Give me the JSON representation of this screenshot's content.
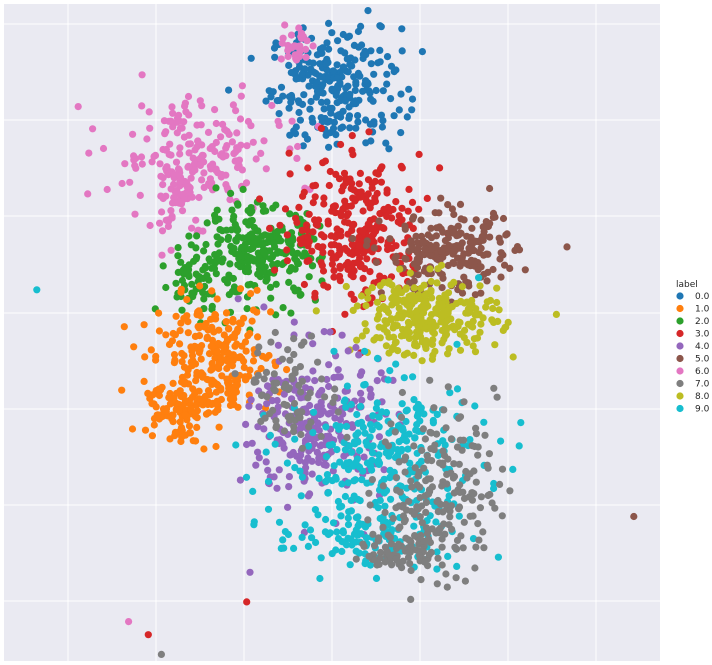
{
  "chart_data": {
    "type": "scatter",
    "title": "",
    "xlabel": "",
    "ylabel": "",
    "grid": true,
    "legend_position": "right",
    "xlim": [
      0,
      100
    ],
    "ylim": [
      0,
      100
    ],
    "legend": {
      "title": "label",
      "items": [
        {
          "label": "0.0",
          "color": "#1f77b4"
        },
        {
          "label": "1.0",
          "color": "#ff7f0e"
        },
        {
          "label": "2.0",
          "color": "#2ca02c"
        },
        {
          "label": "3.0",
          "color": "#d62728"
        },
        {
          "label": "4.0",
          "color": "#9467bd"
        },
        {
          "label": "5.0",
          "color": "#8c564b"
        },
        {
          "label": "6.0",
          "color": "#e377c2"
        },
        {
          "label": "7.0",
          "color": "#7f7f7f"
        },
        {
          "label": "8.0",
          "color": "#bcbd22"
        },
        {
          "label": "9.0",
          "color": "#17becf"
        }
      ]
    },
    "clusters": [
      {
        "label": "0.0",
        "cx": 50.5,
        "cy": 87.5,
        "sx": 5.0,
        "sy": 4.5,
        "n": 260,
        "color": "#1f77b4"
      },
      {
        "label": "6.0",
        "cx": 29.0,
        "cy": 77.0,
        "sx": 6.5,
        "sy": 4.5,
        "n": 180,
        "color": "#e377c2"
      },
      {
        "label": "6.0",
        "cx": 26.5,
        "cy": 71.5,
        "sx": 2.0,
        "sy": 4.0,
        "n": 60,
        "color": "#e377c2"
      },
      {
        "label": "6.0",
        "cx": 44.5,
        "cy": 93.5,
        "sx": 1.0,
        "sy": 1.5,
        "n": 30,
        "color": "#e377c2"
      },
      {
        "label": "2.0",
        "cx": 39.0,
        "cy": 62.0,
        "sx": 4.5,
        "sy": 3.5,
        "n": 260,
        "color": "#2ca02c"
      },
      {
        "label": "2.0",
        "cx": 29.0,
        "cy": 58.0,
        "sx": 2.5,
        "sy": 2.5,
        "n": 60,
        "color": "#2ca02c"
      },
      {
        "label": "3.0",
        "cx": 54.0,
        "cy": 65.5,
        "sx": 5.0,
        "sy": 5.5,
        "n": 300,
        "color": "#d62728"
      },
      {
        "label": "5.0",
        "cx": 68.0,
        "cy": 62.0,
        "sx": 5.0,
        "sy": 3.0,
        "n": 220,
        "color": "#8c564b"
      },
      {
        "label": "8.0",
        "cx": 64.5,
        "cy": 52.5,
        "sx": 5.5,
        "sy": 3.0,
        "n": 280,
        "color": "#bcbd22"
      },
      {
        "label": "1.0",
        "cx": 32.0,
        "cy": 45.5,
        "sx": 4.5,
        "sy": 4.5,
        "n": 260,
        "color": "#ff7f0e"
      },
      {
        "label": "1.0",
        "cx": 26.0,
        "cy": 38.5,
        "sx": 2.5,
        "sy": 2.5,
        "n": 80,
        "color": "#ff7f0e"
      },
      {
        "label": "4.0",
        "cx": 47.5,
        "cy": 36.0,
        "sx": 5.0,
        "sy": 6.0,
        "n": 260,
        "color": "#9467bd"
      },
      {
        "label": "9.0",
        "cx": 58.0,
        "cy": 30.5,
        "sx": 7.5,
        "sy": 6.5,
        "n": 300,
        "color": "#17becf"
      },
      {
        "label": "9.0",
        "cx": 55.0,
        "cy": 18.5,
        "sx": 7.0,
        "sy": 2.0,
        "n": 100,
        "color": "#17becf"
      },
      {
        "label": "7.0",
        "cx": 66.0,
        "cy": 26.0,
        "sx": 4.5,
        "sy": 6.5,
        "n": 200,
        "color": "#7f7f7f"
      },
      {
        "label": "7.0",
        "cx": 60.5,
        "cy": 16.5,
        "sx": 2.5,
        "sy": 1.5,
        "n": 60,
        "color": "#7f7f7f"
      },
      {
        "label": "7.0",
        "cx": 44.0,
        "cy": 41.0,
        "sx": 3.5,
        "sy": 4.0,
        "n": 80,
        "color": "#7f7f7f"
      }
    ],
    "outliers": [
      {
        "x": 5.0,
        "y": 56.5,
        "color": "#17becf"
      },
      {
        "x": 96.0,
        "y": 22.0,
        "color": "#8c564b"
      },
      {
        "x": 37.5,
        "y": 13.5,
        "color": "#9467bd"
      },
      {
        "x": 37.0,
        "y": 9.0,
        "color": "#d62728"
      },
      {
        "x": 19.0,
        "y": 6.0,
        "color": "#e377c2"
      },
      {
        "x": 22.0,
        "y": 4.0,
        "color": "#d62728"
      },
      {
        "x": 24.0,
        "y": 1.0,
        "color": "#7f7f7f"
      }
    ]
  }
}
